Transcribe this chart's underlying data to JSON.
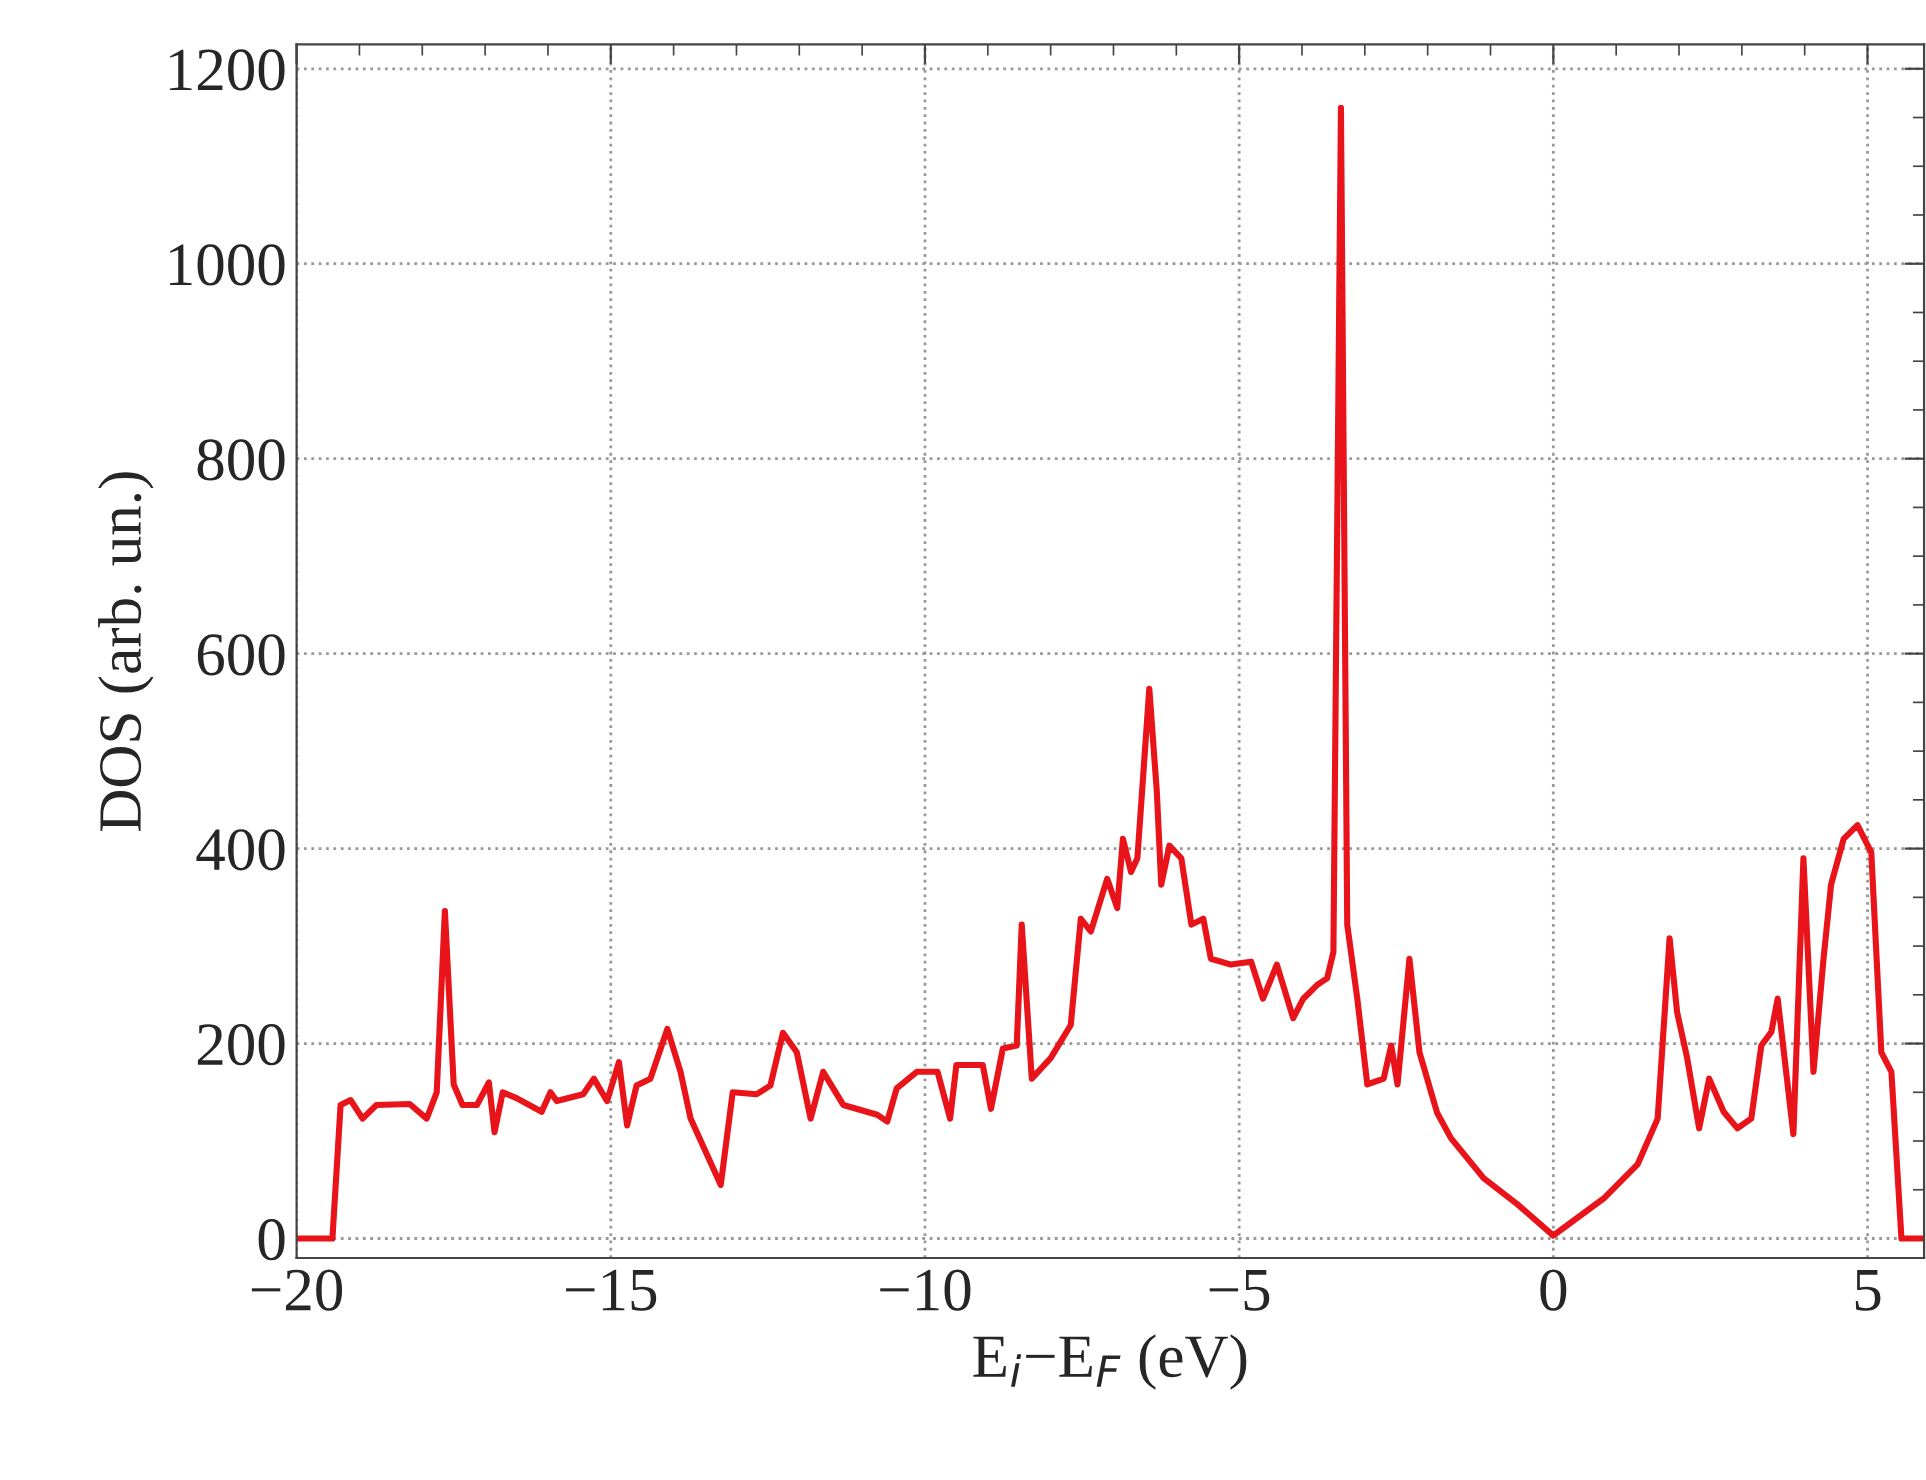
{
  "chart_data": {
    "type": "line",
    "xlabel": "E$_{i}$−E$_{F}$ (eV)",
    "ylabel": "DOS (arb. un.)",
    "xlim": [
      -20,
      5.9
    ],
    "ylim": [
      -20,
      1225
    ],
    "xticks": [
      {
        "value": -20,
        "label": "−20"
      },
      {
        "value": -15,
        "label": "−15"
      },
      {
        "value": -10,
        "label": "−10"
      },
      {
        "value": -5,
        "label": "−5"
      },
      0,
      5
    ],
    "yticks": [
      0,
      200,
      400,
      600,
      800,
      1000,
      1200
    ],
    "grid": true,
    "marker": "none",
    "line_style": "solid",
    "series": [
      {
        "color": "#e8141a",
        "x": [
          -20,
          -19.43,
          -19.3,
          -19.14,
          -18.95,
          -18.73,
          -18.2,
          -17.93,
          -17.77,
          -17.64,
          -17.5,
          -17.36,
          -17.13,
          -16.94,
          -16.85,
          -16.72,
          -16.5,
          -16.1,
          -15.96,
          -15.86,
          -15.44,
          -15.27,
          -15.06,
          -14.87,
          -14.74,
          -14.59,
          -14.37,
          -14.1,
          -13.89,
          -13.73,
          -13.25,
          -13.06,
          -12.68,
          -12.46,
          -12.26,
          -12.04,
          -11.82,
          -11.62,
          -11.3,
          -10.76,
          -10.6,
          -10.45,
          -10.13,
          -9.8,
          -9.6,
          -9.5,
          -9.08,
          -8.95,
          -8.76,
          -8.54,
          -8.46,
          -8.3,
          -8.0,
          -7.68,
          -7.52,
          -7.36,
          -7.1,
          -6.94,
          -6.85,
          -6.72,
          -6.62,
          -6.43,
          -6.31,
          -6.24,
          -6.11,
          -5.92,
          -5.76,
          -5.57,
          -5.45,
          -5.13,
          -4.81,
          -4.62,
          -4.4,
          -4.14,
          -3.98,
          -3.76,
          -3.6,
          -3.5,
          -3.38,
          -3.28,
          -3.12,
          -2.96,
          -2.7,
          -2.58,
          -2.48,
          -2.29,
          -2.13,
          -1.85,
          -1.63,
          -1.11,
          -0.57,
          0,
          0.8,
          1.34,
          1.66,
          1.85,
          1.97,
          2.13,
          2.32,
          2.48,
          2.71,
          2.93,
          3.15,
          3.31,
          3.47,
          3.57,
          3.82,
          3.98,
          4.14,
          4.3,
          4.42,
          4.62,
          4.84,
          5.06,
          5.22,
          5.38,
          5.54,
          5.9
        ],
        "values": [
          0,
          0,
          137,
          142,
          123,
          137,
          138,
          123,
          150,
          336,
          158,
          137,
          137,
          160,
          109,
          150,
          144,
          130,
          150,
          141,
          148,
          164,
          141,
          181,
          116,
          157,
          164,
          215,
          171,
          123,
          55,
          150,
          148,
          157,
          211,
          191,
          123,
          171,
          137,
          127,
          120,
          154,
          171,
          171,
          123,
          178,
          178,
          133,
          195,
          198,
          322,
          164,
          185,
          219,
          328,
          315,
          369,
          339,
          410,
          376,
          390,
          564,
          458,
          363,
          403,
          390,
          322,
          328,
          287,
          281,
          284,
          246,
          281,
          226,
          246,
          260,
          267,
          294,
          1160,
          322,
          246,
          158,
          164,
          198,
          158,
          287,
          191,
          129,
          103,
          62,
          35,
          3,
          41,
          76,
          123,
          308,
          232,
          185,
          113,
          164,
          130,
          113,
          123,
          198,
          212,
          246,
          107,
          390,
          171,
          287,
          363,
          410,
          424,
          396,
          191,
          171,
          0,
          0
        ]
      }
    ]
  }
}
